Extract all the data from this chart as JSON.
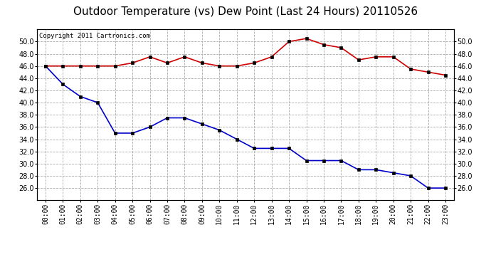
{
  "title": "Outdoor Temperature (vs) Dew Point (Last 24 Hours) 20110526",
  "copyright_text": "Copyright 2011 Cartronics.com",
  "x_labels": [
    "00:00",
    "01:00",
    "02:00",
    "03:00",
    "04:00",
    "05:00",
    "06:00",
    "07:00",
    "08:00",
    "09:00",
    "10:00",
    "11:00",
    "12:00",
    "13:00",
    "14:00",
    "15:00",
    "16:00",
    "17:00",
    "18:00",
    "19:00",
    "20:00",
    "21:00",
    "22:00",
    "23:00"
  ],
  "temp_values": [
    46.0,
    46.0,
    46.0,
    46.0,
    46.0,
    46.5,
    47.5,
    46.5,
    47.5,
    46.5,
    46.0,
    46.0,
    46.5,
    47.5,
    50.0,
    50.5,
    49.5,
    49.0,
    47.0,
    47.5,
    47.5,
    45.5,
    45.0,
    44.5
  ],
  "dew_values": [
    46.0,
    43.0,
    41.0,
    40.0,
    35.0,
    35.0,
    36.0,
    37.5,
    37.5,
    36.5,
    35.5,
    34.0,
    32.5,
    32.5,
    32.5,
    30.5,
    30.5,
    30.5,
    29.0,
    29.0,
    28.5,
    28.0,
    26.0,
    26.0
  ],
  "temp_color": "#cc0000",
  "dew_color": "#0000cc",
  "bg_color": "#ffffff",
  "plot_bg_color": "#ffffff",
  "grid_color": "#aaaaaa",
  "ylim": [
    24.0,
    52.0
  ],
  "yticks": [
    26.0,
    28.0,
    30.0,
    32.0,
    34.0,
    36.0,
    38.0,
    40.0,
    42.0,
    44.0,
    46.0,
    48.0,
    50.0
  ],
  "title_fontsize": 11,
  "copyright_fontsize": 6.5,
  "tick_fontsize": 7,
  "marker_size": 3,
  "linewidth": 1.2
}
